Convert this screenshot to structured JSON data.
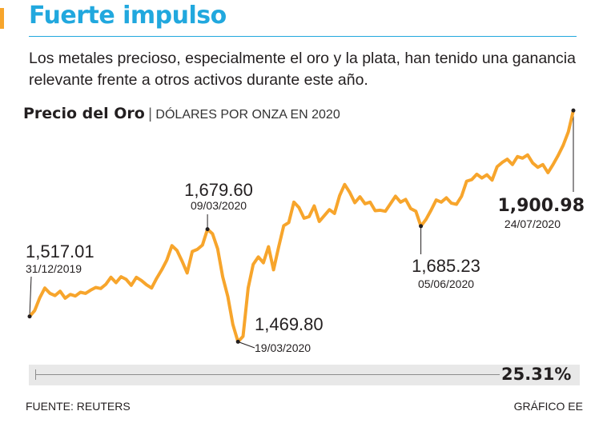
{
  "header": {
    "title": "Fuerte impulso",
    "subtitle": "Los metales precioso, especialmente el oro y la plata, han tenido una ganancia relevante frente a otros activos durante este año."
  },
  "colors": {
    "title": "#21a8de",
    "accent": "#f7a52c",
    "line": "#f7a52c",
    "text": "#231f20"
  },
  "chart_data": {
    "type": "line",
    "title": "Precio del Oro",
    "subtitle": "DÓLARES POR ONZA EN 2020",
    "xlabel": "",
    "ylabel": "",
    "grid": false,
    "x_range": [
      "31/12/2019",
      "24/07/2020"
    ],
    "ylim": [
      1460,
      1910
    ],
    "series": [
      {
        "values": [
          1517.01,
          1528,
          1552,
          1570,
          1560,
          1556,
          1564,
          1551,
          1558,
          1555,
          1562,
          1560,
          1566,
          1571,
          1569,
          1577,
          1590,
          1580,
          1591,
          1586,
          1575,
          1590,
          1584,
          1576,
          1570,
          1588,
          1604,
          1622,
          1649,
          1640,
          1620,
          1598,
          1638,
          1642,
          1650,
          1679.6,
          1671,
          1643,
          1591,
          1554,
          1502,
          1469.8,
          1480,
          1570,
          1614,
          1628,
          1617,
          1647,
          1604,
          1646,
          1686,
          1692,
          1730,
          1720,
          1700,
          1703,
          1723,
          1694,
          1705,
          1716,
          1709,
          1742,
          1763,
          1748,
          1729,
          1740,
          1727,
          1730,
          1714,
          1715,
          1713,
          1727,
          1741,
          1730,
          1735,
          1718,
          1713,
          1685.23,
          1698,
          1715,
          1734,
          1730,
          1738,
          1728,
          1726,
          1741,
          1769,
          1772,
          1782,
          1775,
          1781,
          1771,
          1796,
          1804,
          1810,
          1800,
          1815,
          1812,
          1818,
          1803,
          1795,
          1800,
          1785,
          1800,
          1817,
          1836,
          1861,
          1900.98
        ]
      }
    ],
    "annotations": [
      {
        "value": "1,517.01",
        "date": "31/12/2019"
      },
      {
        "value": "1,679.60",
        "date": "09/03/2020"
      },
      {
        "value": "1,469.80",
        "date": "19/03/2020"
      },
      {
        "value": "1,685.23",
        "date": "05/06/2020"
      },
      {
        "value": "1,900.98",
        "date": "24/07/2020"
      }
    ]
  },
  "change_bar": {
    "value_label": "25.31%"
  },
  "footer": {
    "source": "FUENTE: REUTERS",
    "credit": "GRÁFICO EE"
  }
}
